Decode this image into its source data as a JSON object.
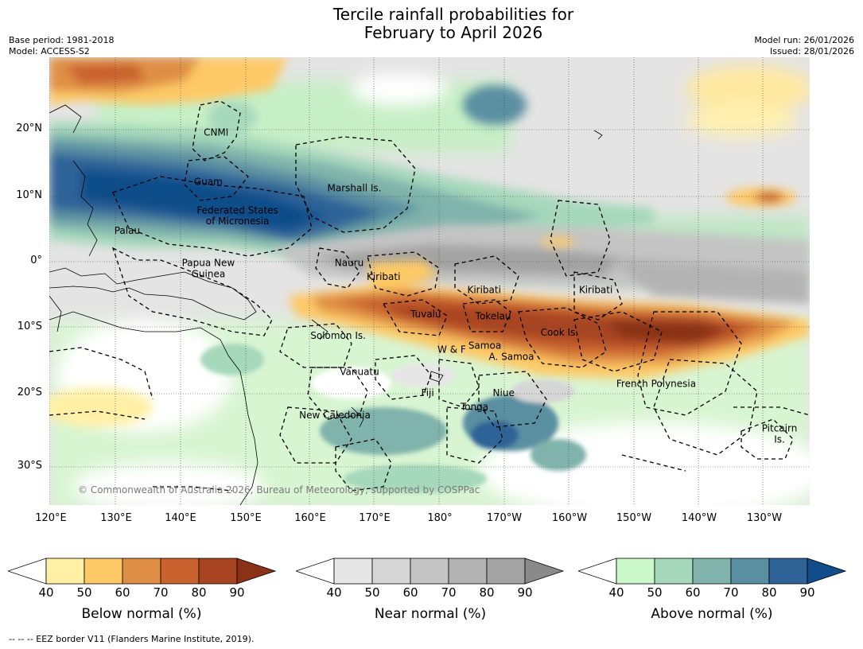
{
  "title_line1": "Tercile rainfall probabilities for",
  "title_line2": "February to April 2026",
  "base_period": "Base period: 1981-2018",
  "model": "Model: ACCESS-S2",
  "model_run": "Model run: 26/01/2026",
  "issued": "Issued: 28/01/2026",
  "copyright": "© Commonwealth of Australia 2026, Bureau of Meteorology, supported by COSPPac",
  "lat_labels": [
    "20°N",
    "10°N",
    "0°",
    "10°S",
    "20°S",
    "30°S"
  ],
  "lon_labels": [
    "120°E",
    "130°E",
    "140°E",
    "150°E",
    "160°E",
    "170°E",
    "180°",
    "170°W",
    "160°W",
    "150°W",
    "140°W",
    "130°W"
  ],
  "places": [
    {
      "name": "CNMI",
      "lon": 145.7,
      "lat": 19.7
    },
    {
      "name": "Guam",
      "lon": 144.5,
      "lat": 12.2
    },
    {
      "name": "Marshall Is.",
      "lon": 167.0,
      "lat": 11.2
    },
    {
      "name": "Federated States",
      "lon": 149.0,
      "lat": 7.8
    },
    {
      "name": "of Micronesia",
      "lon": 149.0,
      "lat": 6.2
    },
    {
      "name": "Palau",
      "lon": 132.0,
      "lat": 4.7
    },
    {
      "name": "Papua New",
      "lon": 144.5,
      "lat": -0.2
    },
    {
      "name": "Guinea",
      "lon": 144.5,
      "lat": -1.9
    },
    {
      "name": "Nauru",
      "lon": 166.2,
      "lat": -0.2
    },
    {
      "name": "Kiribati",
      "lon": 171.5,
      "lat": -2.3
    },
    {
      "name": "Kiribati",
      "lon": -173.0,
      "lat": -4.3
    },
    {
      "name": "Kiribati",
      "lon": -155.8,
      "lat": -4.3
    },
    {
      "name": "Tuvalu",
      "lon": 178.0,
      "lat": -8.0
    },
    {
      "name": "Tokelau",
      "lon": -171.6,
      "lat": -8.3
    },
    {
      "name": "Cook Is.",
      "lon": -161.4,
      "lat": -10.8
    },
    {
      "name": "Solomon Is.",
      "lon": 164.5,
      "lat": -11.3
    },
    {
      "name": "W & F",
      "lon": -178.0,
      "lat": -13.4
    },
    {
      "name": "Samoa",
      "lon": -172.9,
      "lat": -12.8
    },
    {
      "name": "A. Samoa",
      "lon": -168.8,
      "lat": -14.5
    },
    {
      "name": "Vanuatu",
      "lon": 167.8,
      "lat": -16.8
    },
    {
      "name": "Fiji",
      "lon": 178.3,
      "lat": -20.0
    },
    {
      "name": "Niue",
      "lon": -170.0,
      "lat": -20.0
    },
    {
      "name": "French Polynesia",
      "lon": -146.5,
      "lat": -18.6
    },
    {
      "name": "Tonga",
      "lon": -174.5,
      "lat": -22.1
    },
    {
      "name": "New Caledonia",
      "lon": 164.0,
      "lat": -23.4
    },
    {
      "name": "Pitcairn",
      "lon": -127.5,
      "lat": -25.4
    },
    {
      "name": "Is.",
      "lon": -127.5,
      "lat": -27.1
    }
  ],
  "legends": [
    {
      "title": "Below normal (%)",
      "ticks": [
        "40",
        "50",
        "60",
        "70",
        "80",
        "90"
      ],
      "colors": [
        "#ffffff",
        "#fff0a6",
        "#fdc966",
        "#df8f45",
        "#c9622f",
        "#a84520",
        "#8a3116"
      ]
    },
    {
      "title": "Near normal (%)",
      "ticks": [
        "40",
        "50",
        "60",
        "70",
        "80",
        "90"
      ],
      "colors": [
        "#ffffff",
        "#e6e6e6",
        "#d6d6d6",
        "#c4c4c4",
        "#b3b3b3",
        "#a3a3a3",
        "#8a8a8a"
      ]
    },
    {
      "title": "Above normal (%)",
      "ticks": [
        "40",
        "50",
        "60",
        "70",
        "80",
        "90"
      ],
      "colors": [
        "#ffffff",
        "#caf8c9",
        "#a6d8bb",
        "#80b3ab",
        "#5a8fa1",
        "#2f6397",
        "#104d8a"
      ]
    }
  ],
  "footnote": "-- -- -- EEZ border V11 (Flanders Marine Institute, 2019)."
}
